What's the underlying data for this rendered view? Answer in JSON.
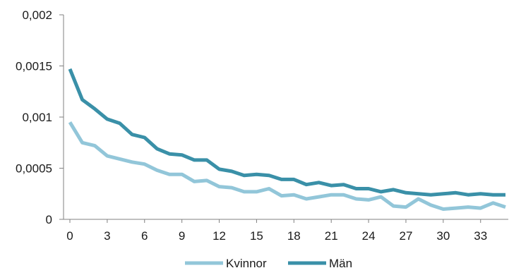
{
  "chart_data": {
    "type": "line",
    "title": "",
    "xlabel": "",
    "ylabel": "",
    "ylim": [
      0,
      0.002
    ],
    "xlim": [
      0,
      35
    ],
    "x_ticks": [
      0,
      3,
      6,
      9,
      12,
      15,
      18,
      21,
      24,
      27,
      30,
      33
    ],
    "y_ticks": [
      0,
      0.0005,
      0.001,
      0.0015,
      0.002
    ],
    "y_tick_labels": [
      "0",
      "0,0005",
      "0,001",
      "0,0015",
      "0,002"
    ],
    "x": [
      0,
      1,
      2,
      3,
      4,
      5,
      6,
      7,
      8,
      9,
      10,
      11,
      12,
      13,
      14,
      15,
      16,
      17,
      18,
      19,
      20,
      21,
      22,
      23,
      24,
      25,
      26,
      27,
      28,
      29,
      30,
      31,
      32,
      33,
      34,
      35
    ],
    "grid": false,
    "legend": "bottom",
    "series": [
      {
        "name": "Kvinnor",
        "color": "#92c6d9",
        "values": [
          0.00095,
          0.00075,
          0.00072,
          0.00062,
          0.00059,
          0.00056,
          0.00054,
          0.00048,
          0.00044,
          0.00044,
          0.00037,
          0.00038,
          0.00032,
          0.00031,
          0.00027,
          0.00027,
          0.0003,
          0.00023,
          0.00024,
          0.0002,
          0.00022,
          0.00024,
          0.00024,
          0.0002,
          0.00019,
          0.00022,
          0.00013,
          0.00012,
          0.0002,
          0.00014,
          0.0001,
          0.00011,
          0.00012,
          0.00011,
          0.00016,
          0.00012
        ]
      },
      {
        "name": "Män",
        "color": "#3a90a8",
        "values": [
          0.00147,
          0.00117,
          0.00108,
          0.00098,
          0.00094,
          0.00083,
          0.0008,
          0.00069,
          0.00064,
          0.00063,
          0.00058,
          0.00058,
          0.00049,
          0.00047,
          0.00043,
          0.00044,
          0.00043,
          0.00039,
          0.00039,
          0.00034,
          0.00036,
          0.00033,
          0.00034,
          0.0003,
          0.0003,
          0.00027,
          0.00029,
          0.00026,
          0.00025,
          0.00024,
          0.00025,
          0.00026,
          0.00024,
          0.00025,
          0.00024,
          0.00024
        ]
      }
    ]
  }
}
